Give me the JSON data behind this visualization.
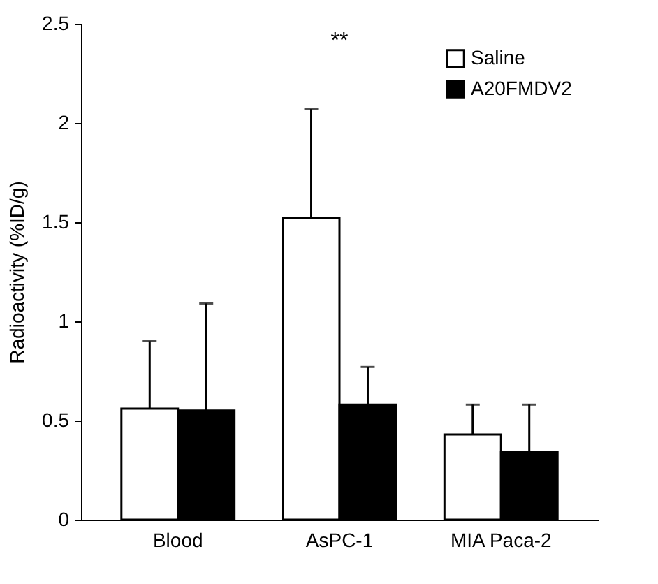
{
  "chart_data": {
    "type": "bar",
    "ylabel": "Radioactivity (%ID/g)",
    "categories": [
      "Blood",
      "AsPC-1",
      "MIA Paca-2"
    ],
    "series": [
      {
        "name": "Saline",
        "color": "#ffffff",
        "values": [
          0.56,
          1.52,
          0.43
        ],
        "errors": [
          [
            0.56,
            0.9
          ],
          [
            1.52,
            2.07
          ],
          [
            0.43,
            0.58
          ]
        ]
      },
      {
        "name": "A20FMDV2",
        "color": "#000000",
        "values": [
          0.55,
          0.58,
          0.34
        ],
        "errors": [
          [
            0.55,
            1.09
          ],
          [
            0.58,
            0.77
          ],
          [
            0.34,
            0.58
          ]
        ]
      }
    ],
    "ylim": [
      0,
      2.5
    ],
    "yticks": [
      0,
      0.5,
      1,
      1.5,
      2,
      2.5
    ],
    "grid": false,
    "legend": "top right",
    "annotations": [
      "**"
    ]
  }
}
